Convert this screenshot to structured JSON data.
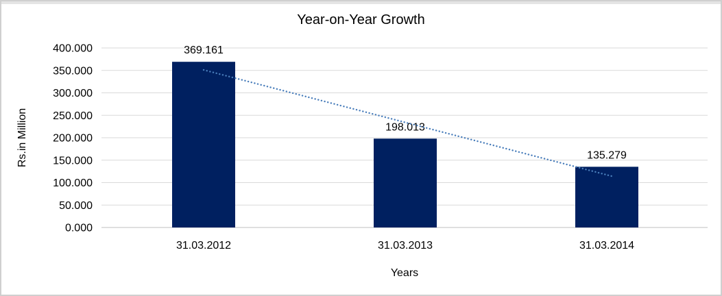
{
  "window": {
    "background": "#ffffff",
    "frame_border_color": "#cfcfcf",
    "top_band_color": "#e4e4e4"
  },
  "chart_data": {
    "type": "bar",
    "title": "Year-on-Year Growth",
    "categories": [
      "31.03.2012",
      "31.03.2013",
      "31.03.2014"
    ],
    "values": [
      369.161,
      198.013,
      135.279
    ],
    "data_labels": [
      "369.161",
      "198.013",
      "135.279"
    ],
    "xlabel": "Years",
    "ylabel": "Rs.in Million",
    "ylim": [
      0,
      400
    ],
    "ytick_interval": 50,
    "ytick_labels": [
      "0.000",
      "50.000",
      "100.000",
      "150.000",
      "200.000",
      "250.000",
      "300.000",
      "350.000",
      "400.000"
    ],
    "grid": true,
    "legend": "none",
    "bar_color": "#002060",
    "gridline_color": "#d9d9d9",
    "zero_line_color": "#bfbfbf",
    "text_color": "#000000",
    "trendline": {
      "type": "linear",
      "style": "dotted",
      "color": "#4a7ebb",
      "start_value": 351.1,
      "end_value": 117.2
    }
  }
}
